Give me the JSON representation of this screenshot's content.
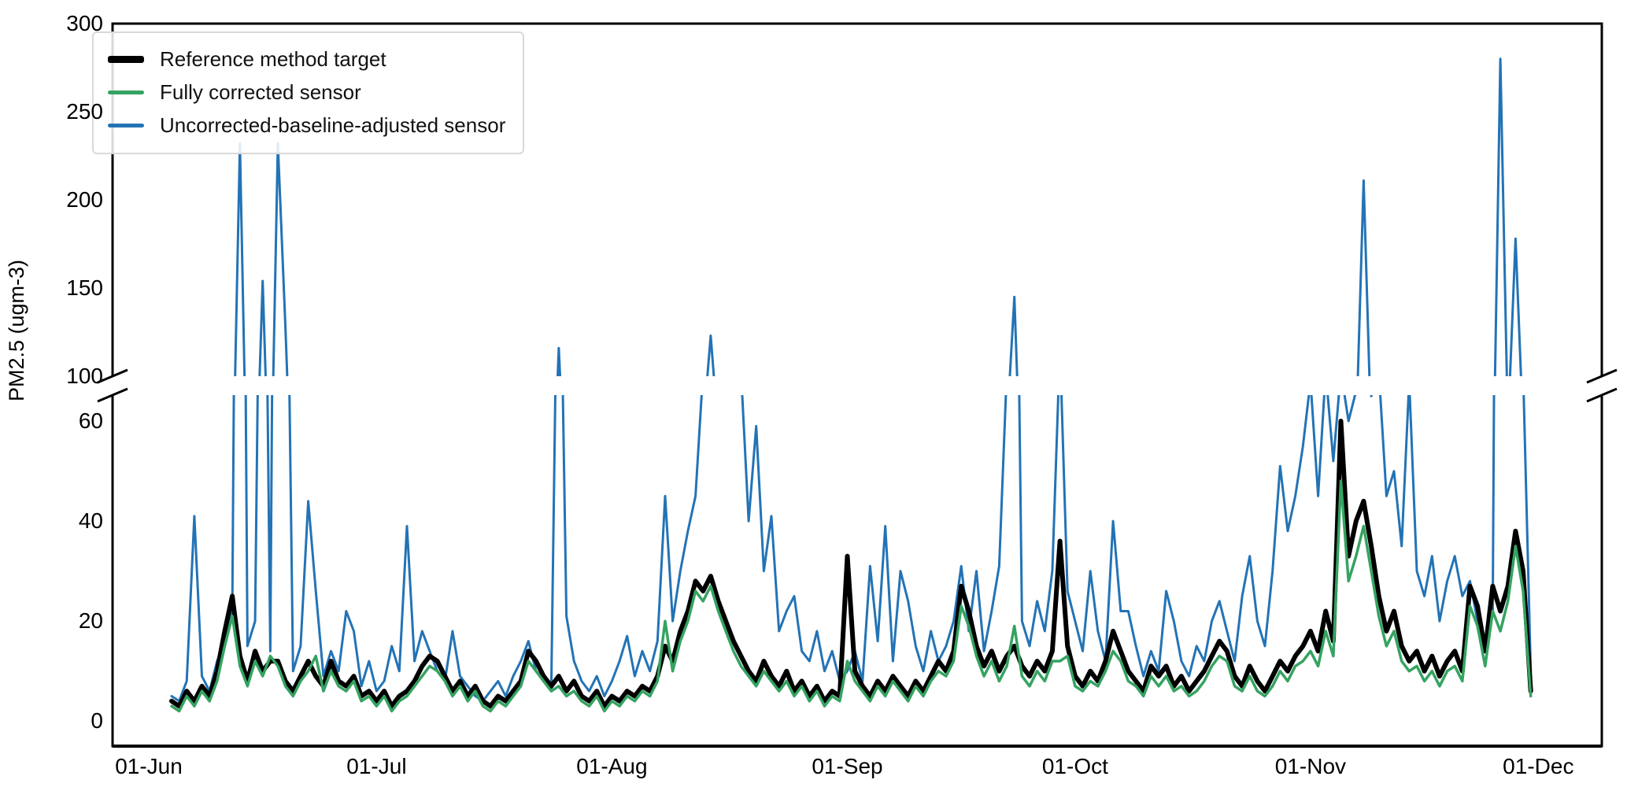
{
  "chart_data": {
    "type": "line",
    "title": "",
    "ylabel": "PM2.5 (ugm-3)",
    "x_axis": {
      "tick_labels": [
        "01-Jun",
        "01-Jul",
        "01-Aug",
        "01-Sep",
        "01-Oct",
        "01-Nov",
        "01-Dec"
      ],
      "tick_day_offsets": [
        0,
        30,
        61,
        92,
        122,
        153,
        183
      ],
      "start_day_offset": 3,
      "days_per_sample": 1
    },
    "broken_y_axis": {
      "upper_range": [
        100,
        300
      ],
      "upper_ticks": [
        100,
        150,
        200,
        250,
        300
      ],
      "lower_range": [
        -5,
        65.2
      ],
      "lower_ticks": [
        0,
        20,
        40,
        60
      ]
    },
    "grid": false,
    "legend_position": "upper left",
    "series": [
      {
        "name": "Reference method target",
        "color": "#000000",
        "line_width": 6,
        "values": [
          4,
          3,
          6,
          4,
          7,
          5,
          10,
          18,
          25,
          13,
          8,
          14,
          10,
          12,
          12,
          8,
          6,
          9,
          12,
          9,
          7,
          12,
          8,
          7,
          9,
          5,
          6,
          4,
          6,
          3,
          5,
          6,
          8,
          11,
          13,
          12,
          9,
          6,
          8,
          5,
          7,
          4,
          3,
          5,
          4,
          6,
          8,
          14,
          12,
          9,
          7,
          9,
          6,
          8,
          5,
          4,
          6,
          3,
          5,
          4,
          6,
          5,
          7,
          6,
          9,
          15,
          12,
          18,
          22,
          28,
          26,
          29,
          24,
          20,
          16,
          13,
          10,
          8,
          12,
          9,
          7,
          10,
          6,
          8,
          5,
          7,
          4,
          6,
          5,
          33,
          10,
          7,
          5,
          8,
          6,
          9,
          7,
          5,
          8,
          6,
          9,
          12,
          10,
          14,
          27,
          22,
          15,
          11,
          14,
          10,
          13,
          15,
          11,
          9,
          12,
          10,
          14,
          36,
          15,
          9,
          7,
          10,
          8,
          12,
          18,
          14,
          10,
          8,
          6,
          11,
          9,
          11,
          7,
          9,
          6,
          8,
          10,
          13,
          16,
          14,
          9,
          7,
          11,
          8,
          6,
          9,
          12,
          10,
          13,
          15,
          18,
          14,
          22,
          16,
          60,
          33,
          40,
          44,
          35,
          25,
          18,
          22,
          15,
          12,
          14,
          10,
          13,
          9,
          12,
          14,
          10,
          27,
          23,
          14,
          27,
          22,
          27,
          38,
          30,
          6
        ]
      },
      {
        "name": "Fully corrected sensor",
        "color": "#35a361",
        "line_width": 3.5,
        "values": [
          3,
          2,
          5,
          3,
          6,
          4,
          8,
          15,
          21,
          11,
          7,
          12,
          9,
          13,
          11,
          7,
          5,
          8,
          10,
          13,
          6,
          10,
          7,
          6,
          8,
          4,
          5,
          3,
          5,
          2,
          4,
          5,
          7,
          9,
          11,
          10,
          8,
          5,
          7,
          4,
          6,
          3,
          2,
          4,
          3,
          5,
          7,
          12,
          10,
          8,
          6,
          7,
          5,
          6,
          4,
          3,
          5,
          2,
          4,
          3,
          5,
          4,
          6,
          5,
          8,
          20,
          10,
          16,
          20,
          26,
          24,
          27,
          22,
          18,
          14,
          11,
          9,
          7,
          10,
          8,
          6,
          8,
          5,
          7,
          4,
          6,
          3,
          5,
          4,
          12,
          8,
          6,
          4,
          7,
          5,
          8,
          6,
          4,
          7,
          5,
          8,
          10,
          9,
          12,
          23,
          19,
          13,
          9,
          12,
          8,
          11,
          19,
          9,
          7,
          10,
          8,
          12,
          12,
          13,
          7,
          6,
          8,
          7,
          10,
          14,
          12,
          8,
          7,
          5,
          9,
          7,
          9,
          6,
          7,
          5,
          6,
          8,
          11,
          13,
          12,
          7,
          6,
          9,
          6,
          5,
          7,
          10,
          8,
          11,
          12,
          14,
          11,
          18,
          13,
          48,
          28,
          33,
          39,
          30,
          21,
          15,
          18,
          12,
          10,
          11,
          8,
          10,
          7,
          10,
          11,
          8,
          23,
          19,
          11,
          22,
          18,
          24,
          35,
          26,
          5
        ]
      },
      {
        "name": "Uncorrected-baseline-adjusted sensor",
        "color": "#2373b5",
        "line_width": 3,
        "values": [
          5,
          4,
          8,
          41,
          9,
          6,
          12,
          16,
          22,
          232,
          15,
          20,
          154,
          14,
          232,
          128,
          10,
          15,
          44,
          26,
          9,
          14,
          10,
          22,
          18,
          7,
          12,
          6,
          8,
          15,
          10,
          39,
          12,
          18,
          14,
          10,
          8,
          18,
          9,
          7,
          5,
          4,
          6,
          8,
          5,
          9,
          12,
          16,
          10,
          8,
          6,
          116,
          21,
          12,
          8,
          6,
          9,
          5,
          8,
          12,
          17,
          9,
          14,
          10,
          16,
          45,
          20,
          30,
          38,
          45,
          70,
          123,
          68,
          70,
          66,
          70,
          40,
          59,
          30,
          41,
          18,
          22,
          25,
          14,
          12,
          18,
          10,
          14,
          8,
          10,
          14,
          8,
          31,
          16,
          39,
          12,
          30,
          24,
          15,
          10,
          18,
          12,
          15,
          20,
          31,
          18,
          30,
          14,
          22,
          31,
          70,
          145,
          20,
          15,
          24,
          18,
          30,
          75,
          26,
          20,
          14,
          30,
          18,
          12,
          40,
          22,
          22,
          15,
          9,
          14,
          10,
          26,
          20,
          12,
          9,
          15,
          12,
          20,
          24,
          18,
          12,
          25,
          33,
          20,
          15,
          30,
          51,
          38,
          45,
          55,
          68,
          45,
          70,
          52,
          70,
          60,
          66,
          211,
          65,
          70,
          45,
          50,
          35,
          68,
          30,
          25,
          33,
          20,
          28,
          33,
          25,
          28,
          20,
          15,
          22,
          280,
          70,
          178,
          70,
          10
        ]
      }
    ],
    "draw_order": [
      2,
      0,
      1
    ]
  }
}
